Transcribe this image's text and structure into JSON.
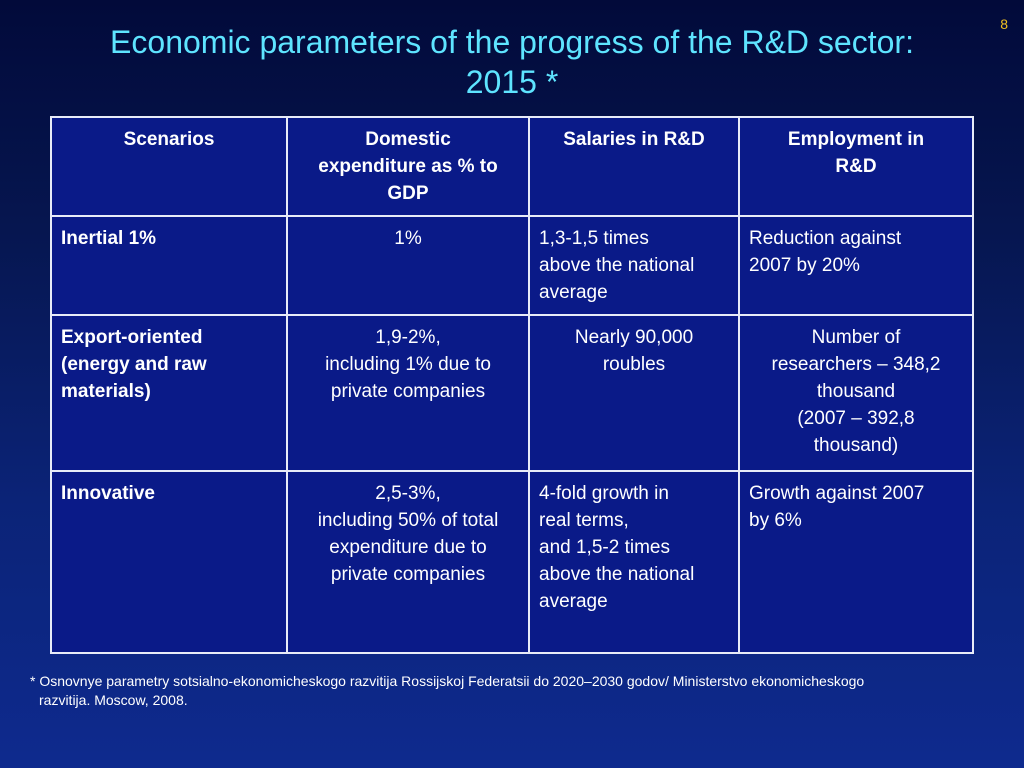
{
  "slide": {
    "number": "8",
    "title_line1": "Economic parameters of the progress of the R&D sector:",
    "title_line2": "2015 *"
  },
  "table": {
    "headers": [
      "Scenarios",
      "Domestic expenditure as % to GDP",
      "Salaries in R&D",
      "Employment in R&D"
    ],
    "header_lines": [
      [
        "Scenarios"
      ],
      [
        "Domestic",
        "expenditure as % to",
        "GDP"
      ],
      [
        "Salaries in R&D"
      ],
      [
        "Employment in",
        "R&D"
      ]
    ],
    "rows": [
      {
        "scenario_lines": [
          "Inertial 1%"
        ],
        "expenditure_lines": [
          "1%"
        ],
        "salaries_lines": [
          "1,3-1,5 times",
          "above the national",
          "average"
        ],
        "employment_lines": [
          "Reduction against",
          "2007 by 20%"
        ]
      },
      {
        "scenario_lines": [
          "Export-oriented",
          "(energy and raw",
          "materials)"
        ],
        "expenditure_lines": [
          "1,9-2%,",
          "including 1% due to",
          "private companies"
        ],
        "salaries_lines": [
          "Nearly 90,000",
          "roubles"
        ],
        "employment_lines": [
          "Number of",
          "researchers – 348,2",
          "thousand",
          "(2007 – 392,8",
          "thousand)"
        ]
      },
      {
        "scenario_lines": [
          "Innovative"
        ],
        "expenditure_lines": [
          "2,5-3%,",
          "including 50% of total",
          "expenditure due to",
          "private companies"
        ],
        "salaries_lines": [
          "4-fold growth in",
          "real terms,",
          "and 1,5-2 times",
          "above the national",
          "average"
        ],
        "employment_lines": [
          "Growth against 2007",
          "by 6%"
        ]
      }
    ]
  },
  "footnote": {
    "line1": "* Osnovnye parametry sotsialno-ekonomicheskogo razvitija Rossijskoj Federatsii do 2020–2030 godov/ Ministerstvo ekonomicheskogo",
    "line2": "razvitija. Moscow, 2008."
  },
  "colors": {
    "title": "#5ee4ff",
    "slide_number": "#f0c020",
    "table_bg": "#0a1a88",
    "border": "#e8ecf8"
  }
}
